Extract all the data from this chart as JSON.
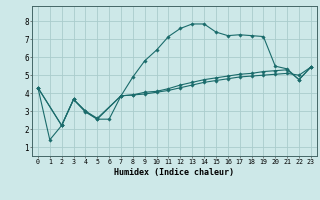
{
  "background_color": "#cde8e8",
  "grid_color": "#aacccc",
  "line_color": "#1a6b6b",
  "marker_color": "#1a6b6b",
  "xlabel": "Humidex (Indice chaleur)",
  "xlim": [
    -0.5,
    23.5
  ],
  "ylim": [
    0.5,
    8.85
  ],
  "xticks": [
    0,
    1,
    2,
    3,
    4,
    5,
    6,
    7,
    8,
    9,
    10,
    11,
    12,
    13,
    14,
    15,
    16,
    17,
    18,
    19,
    20,
    21,
    22,
    23
  ],
  "yticks": [
    1,
    2,
    3,
    4,
    5,
    6,
    7,
    8
  ],
  "series1": [
    [
      0,
      4.3
    ],
    [
      1,
      1.4
    ],
    [
      2,
      2.2
    ],
    [
      3,
      3.65
    ],
    [
      4,
      2.95
    ],
    [
      5,
      2.55
    ],
    [
      6,
      2.55
    ],
    [
      7,
      3.85
    ],
    [
      8,
      4.9
    ],
    [
      9,
      5.8
    ],
    [
      10,
      6.4
    ],
    [
      11,
      7.15
    ],
    [
      12,
      7.6
    ],
    [
      13,
      7.85
    ],
    [
      14,
      7.85
    ],
    [
      15,
      7.4
    ],
    [
      16,
      7.2
    ],
    [
      17,
      7.25
    ],
    [
      18,
      7.2
    ],
    [
      19,
      7.15
    ],
    [
      20,
      5.5
    ],
    [
      21,
      5.35
    ],
    [
      22,
      4.75
    ],
    [
      23,
      5.45
    ]
  ],
  "series2": [
    [
      0,
      4.3
    ],
    [
      2,
      2.2
    ],
    [
      3,
      3.65
    ],
    [
      4,
      3.0
    ],
    [
      5,
      2.6
    ],
    [
      7,
      3.85
    ],
    [
      8,
      3.9
    ],
    [
      9,
      4.05
    ],
    [
      10,
      4.1
    ],
    [
      11,
      4.25
    ],
    [
      12,
      4.45
    ],
    [
      13,
      4.6
    ],
    [
      14,
      4.75
    ],
    [
      15,
      4.85
    ],
    [
      16,
      4.95
    ],
    [
      17,
      5.05
    ],
    [
      18,
      5.1
    ],
    [
      19,
      5.2
    ],
    [
      20,
      5.25
    ],
    [
      21,
      5.3
    ],
    [
      22,
      4.75
    ],
    [
      23,
      5.45
    ]
  ],
  "series3": [
    [
      0,
      4.3
    ],
    [
      2,
      2.2
    ],
    [
      3,
      3.65
    ],
    [
      4,
      3.0
    ],
    [
      5,
      2.55
    ],
    [
      7,
      3.85
    ],
    [
      8,
      3.9
    ],
    [
      9,
      3.95
    ],
    [
      10,
      4.05
    ],
    [
      11,
      4.15
    ],
    [
      12,
      4.3
    ],
    [
      13,
      4.45
    ],
    [
      14,
      4.6
    ],
    [
      15,
      4.7
    ],
    [
      16,
      4.8
    ],
    [
      17,
      4.9
    ],
    [
      18,
      4.95
    ],
    [
      19,
      5.0
    ],
    [
      20,
      5.05
    ],
    [
      21,
      5.1
    ],
    [
      22,
      5.0
    ],
    [
      23,
      5.45
    ]
  ]
}
